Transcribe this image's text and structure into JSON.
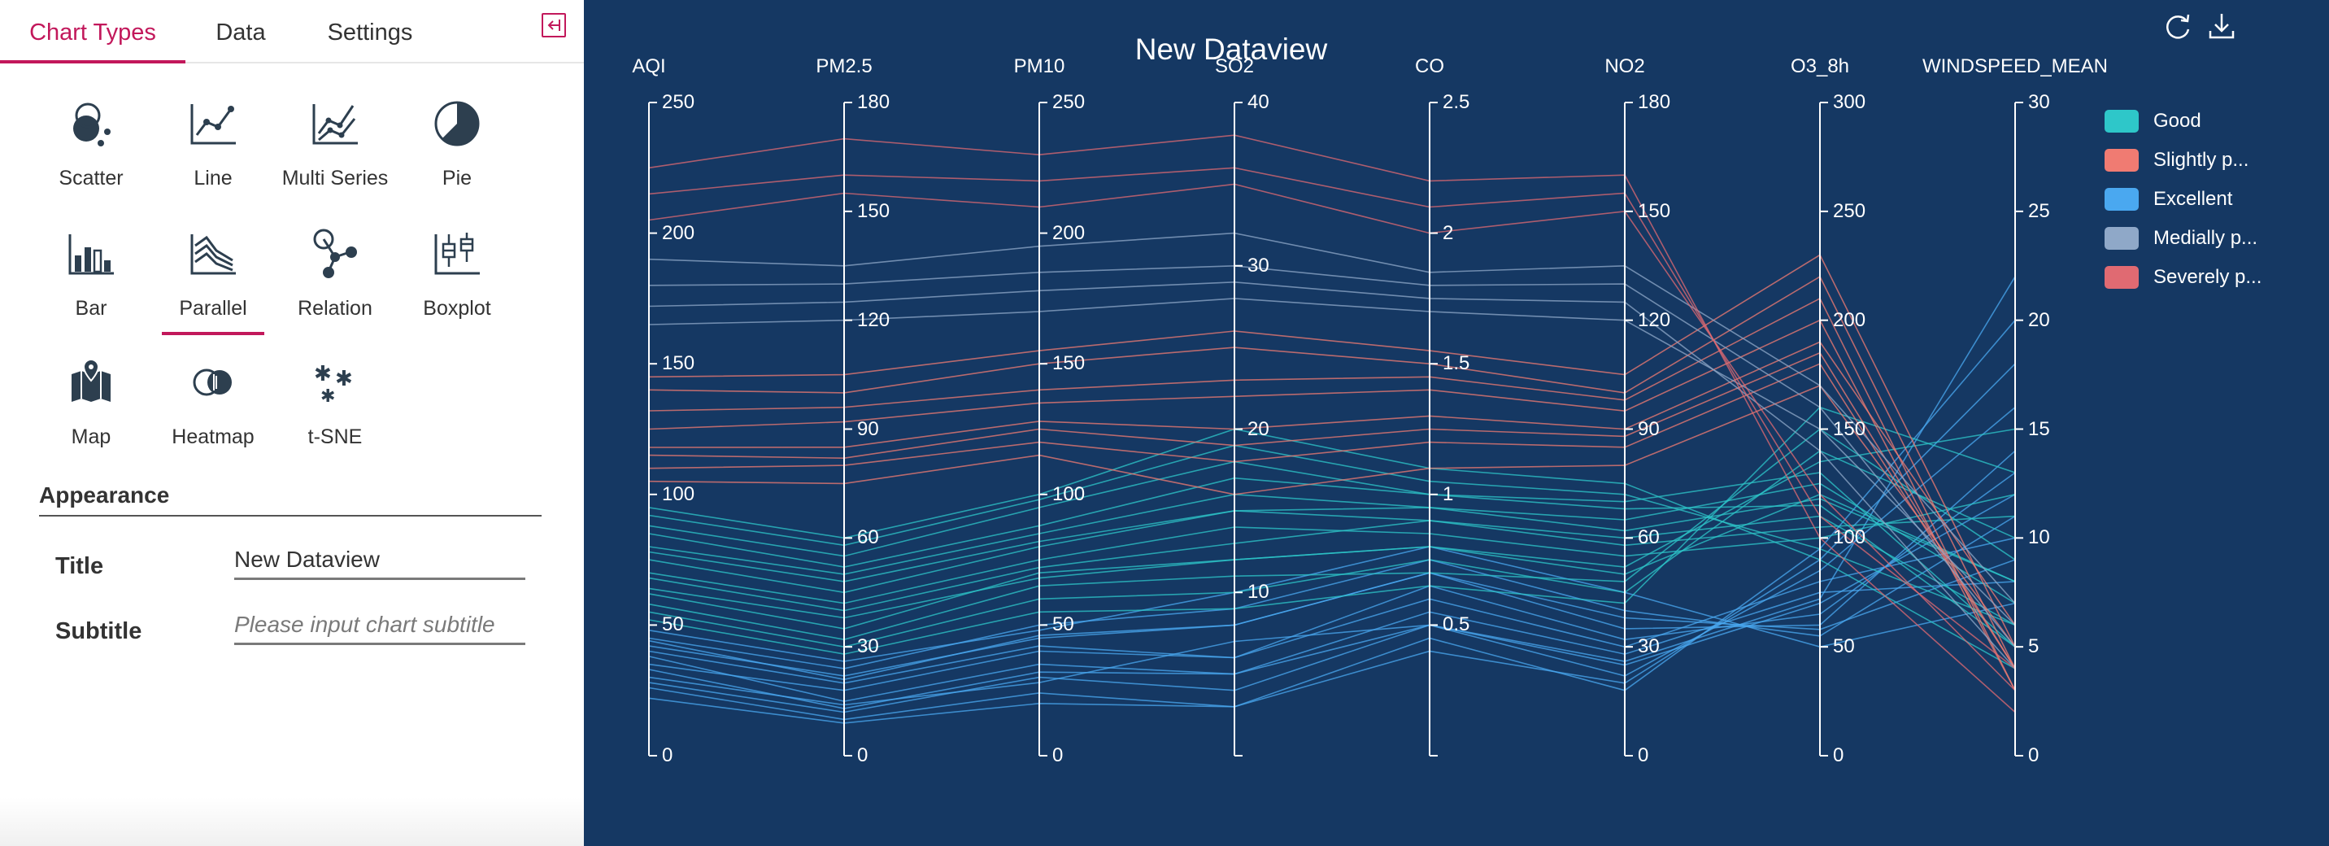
{
  "tabs": [
    {
      "label": "Chart Types",
      "active": true
    },
    {
      "label": "Data",
      "active": false
    },
    {
      "label": "Settings",
      "active": false
    }
  ],
  "chart_types": [
    {
      "label": "Scatter",
      "icon": "scatter-icon"
    },
    {
      "label": "Line",
      "icon": "line-chart-icon"
    },
    {
      "label": "Multi Series",
      "icon": "multi-series-icon"
    },
    {
      "label": "Pie",
      "icon": "pie-icon"
    },
    {
      "label": "Bar",
      "icon": "bar-chart-icon"
    },
    {
      "label": "Parallel",
      "icon": "parallel-icon",
      "active": true
    },
    {
      "label": "Relation",
      "icon": "relation-icon"
    },
    {
      "label": "Boxplot",
      "icon": "boxplot-icon"
    },
    {
      "label": "Map",
      "icon": "map-icon"
    },
    {
      "label": "Heatmap",
      "icon": "heatmap-icon"
    },
    {
      "label": "t-SNE",
      "icon": "tsne-icon"
    }
  ],
  "appearance": {
    "heading": "Appearance",
    "title_label": "Title",
    "title_value": "New Dataview",
    "subtitle_label": "Subtitle",
    "subtitle_placeholder": "Please input chart subtitle",
    "subtitle_value": ""
  },
  "toolbar": {
    "refresh_icon": "refresh-icon",
    "download_icon": "download-icon"
  },
  "colors": {
    "accent": "#c2185b",
    "chart_background": "#153863"
  },
  "chart_data": {
    "type": "parallel",
    "title": "New Dataview",
    "axes": [
      {
        "name": "AQI",
        "max": 250,
        "ticks": [
          0,
          50,
          100,
          150,
          200,
          250
        ]
      },
      {
        "name": "PM2.5",
        "max": 180,
        "ticks": [
          0,
          30,
          60,
          90,
          120,
          150,
          180
        ]
      },
      {
        "name": "PM10",
        "max": 250,
        "ticks": [
          0,
          50,
          100,
          150,
          200,
          250
        ]
      },
      {
        "name": "SO2",
        "max": 40,
        "ticks": [
          10,
          20,
          30,
          40
        ]
      },
      {
        "name": "CO",
        "max": 2.5,
        "ticks": [
          0.5,
          1,
          1.5,
          2,
          2.5
        ]
      },
      {
        "name": "NO2",
        "max": 180,
        "ticks": [
          0,
          30,
          60,
          90,
          120,
          150,
          180
        ]
      },
      {
        "name": "O3_8h",
        "max": 300,
        "ticks": [
          0,
          50,
          100,
          150,
          200,
          250,
          300
        ]
      },
      {
        "name": "WINDSPEED_MEAN",
        "max": 30,
        "ticks": [
          0,
          5,
          10,
          15,
          20,
          25,
          30
        ]
      }
    ],
    "legend": [
      {
        "label": "Good",
        "color": "#2ec7c9"
      },
      {
        "label": "Slightly p...",
        "color": "#f07b72"
      },
      {
        "label": "Excellent",
        "color": "#4aa8f0"
      },
      {
        "label": "Medially p...",
        "color": "#8fa8c8"
      },
      {
        "label": "Severely p...",
        "color": "#e06a72"
      }
    ],
    "legend_position": "right",
    "series": [
      {
        "name": "Excellent",
        "color": "#4aa8f0",
        "records": [
          [
            28,
            12,
            30,
            4,
            0.5,
            25,
            70,
            12
          ],
          [
            35,
            18,
            40,
            6,
            0.6,
            30,
            80,
            10
          ],
          [
            42,
            22,
            45,
            8,
            0.7,
            35,
            60,
            14
          ],
          [
            22,
            9,
            20,
            3,
            0.4,
            20,
            90,
            18
          ],
          [
            38,
            15,
            35,
            5,
            0.55,
            28,
            75,
            8
          ],
          [
            45,
            24,
            50,
            9,
            0.75,
            40,
            55,
            11
          ],
          [
            30,
            14,
            28,
            7,
            0.5,
            22,
            85,
            16
          ],
          [
            48,
            26,
            48,
            10,
            0.8,
            45,
            50,
            7
          ],
          [
            26,
            10,
            24,
            3,
            0.45,
            18,
            95,
            20
          ],
          [
            40,
            20,
            42,
            6,
            0.65,
            32,
            65,
            13
          ],
          [
            33,
            13,
            32,
            5,
            0.5,
            26,
            72,
            22
          ],
          [
            44,
            21,
            46,
            8,
            0.7,
            38,
            58,
            9
          ]
        ]
      },
      {
        "name": "Good",
        "color": "#2ec7c9",
        "records": [
          [
            62,
            35,
            70,
            12,
            0.8,
            50,
            120,
            8
          ],
          [
            75,
            45,
            80,
            15,
            0.9,
            60,
            110,
            6
          ],
          [
            88,
            55,
            95,
            18,
            1.0,
            70,
            130,
            5
          ],
          [
            55,
            30,
            60,
            10,
            0.75,
            45,
            140,
            10
          ],
          [
            70,
            42,
            75,
            14,
            0.85,
            55,
            100,
            12
          ],
          [
            95,
            60,
            100,
            20,
            1.1,
            75,
            90,
            4
          ],
          [
            80,
            50,
            85,
            16,
            0.95,
            65,
            125,
            7
          ],
          [
            58,
            32,
            65,
            11,
            0.7,
            48,
            150,
            9
          ],
          [
            68,
            40,
            72,
            13,
            0.9,
            58,
            105,
            11
          ],
          [
            92,
            58,
            98,
            19,
            1.05,
            72,
            95,
            6
          ],
          [
            52,
            28,
            55,
            9,
            0.65,
            42,
            160,
            13
          ],
          [
            85,
            52,
            88,
            17,
            1.0,
            68,
            115,
            5
          ],
          [
            64,
            38,
            68,
            12,
            0.8,
            52,
            135,
            15
          ],
          [
            78,
            48,
            82,
            15,
            0.95,
            62,
            118,
            8
          ]
        ]
      },
      {
        "name": "Slightly p...",
        "color": "#f07b72",
        "records": [
          [
            110,
            80,
            120,
            18,
            1.2,
            85,
            180,
            4
          ],
          [
            125,
            92,
            135,
            22,
            1.4,
            95,
            200,
            3
          ],
          [
            105,
            75,
            115,
            16,
            1.1,
            80,
            170,
            5
          ],
          [
            140,
            100,
            150,
            25,
            1.5,
            100,
            220,
            4
          ],
          [
            118,
            85,
            128,
            20,
            1.3,
            90,
            190,
            6
          ],
          [
            132,
            96,
            140,
            23,
            1.45,
            98,
            210,
            3
          ],
          [
            145,
            105,
            155,
            26,
            1.55,
            105,
            230,
            5
          ],
          [
            115,
            82,
            125,
            19,
            1.25,
            88,
            185,
            4
          ]
        ]
      },
      {
        "name": "Medially p...",
        "color": "#8fa8c8",
        "records": [
          [
            165,
            120,
            170,
            28,
            1.7,
            120,
            150,
            6
          ],
          [
            180,
            130,
            185,
            30,
            1.8,
            130,
            160,
            5
          ],
          [
            172,
            125,
            178,
            29,
            1.75,
            125,
            140,
            4
          ],
          [
            190,
            135,
            195,
            32,
            1.85,
            135,
            170,
            7
          ]
        ]
      },
      {
        "name": "Severely p...",
        "color": "#e06a72",
        "records": [
          [
            205,
            155,
            210,
            35,
            2.0,
            150,
            120,
            3
          ],
          [
            225,
            170,
            230,
            38,
            2.2,
            160,
            100,
            2
          ],
          [
            215,
            160,
            220,
            36,
            2.1,
            155,
            110,
            4
          ]
        ]
      }
    ]
  }
}
